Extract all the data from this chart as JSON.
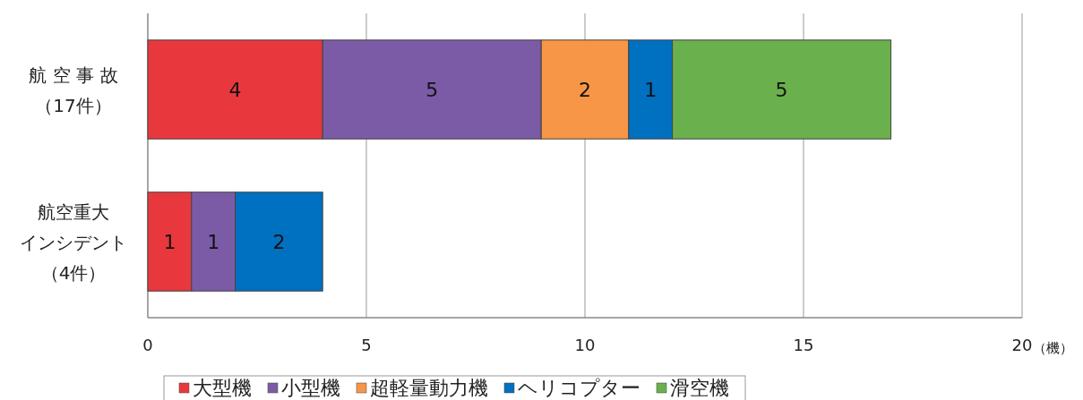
{
  "chart_data": {
    "type": "bar",
    "orientation": "horizontal",
    "stacked": true,
    "data_labels": true,
    "categories": [
      "航 空 事 故（17件）",
      "航空重大インシデント（4件）"
    ],
    "series": [
      {
        "name": "大型機",
        "color": "#e8383d",
        "values": [
          4,
          1
        ]
      },
      {
        "name": "小型機",
        "color": "#7b5ba6",
        "values": [
          5,
          1
        ]
      },
      {
        "name": "超軽量動力機",
        "color": "#f79646",
        "values": [
          2,
          null
        ]
      },
      {
        "name": "ヘリコプター",
        "color": "#0070c0",
        "values": [
          1,
          2
        ]
      },
      {
        "name": "滑空機",
        "color": "#6ab04c",
        "values": [
          5,
          null
        ]
      }
    ],
    "xlim": [
      0,
      20
    ],
    "xticks": [
      0,
      5,
      10,
      15,
      20
    ],
    "xlabel": "（機）",
    "grid": "x",
    "legend": "bottom"
  }
}
